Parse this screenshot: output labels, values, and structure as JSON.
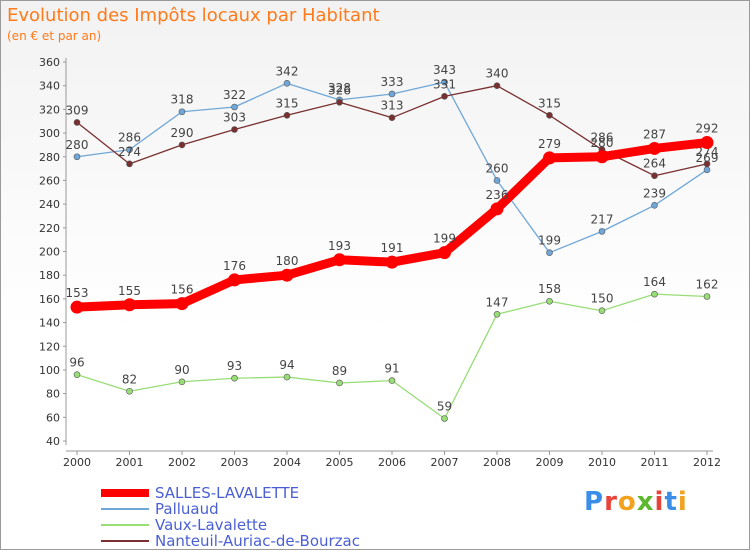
{
  "header": {
    "title": "Evolution des Impôts locaux par Habitant",
    "subtitle": "(en € et par an)"
  },
  "logo": {
    "text": "Proxiti",
    "colors": [
      "#3a8ee8",
      "#e8433a",
      "#f2a21e",
      "#5cb82e",
      "#e8433a",
      "#3a8ee8",
      "#f2a21e"
    ]
  },
  "chart_data": {
    "type": "line",
    "x": [
      "2000",
      "2001",
      "2002",
      "2003",
      "2004",
      "2005",
      "2006",
      "2007",
      "2008",
      "2009",
      "2010",
      "2011",
      "2012"
    ],
    "ylim": [
      40,
      360
    ],
    "yticks": [
      40,
      60,
      80,
      100,
      120,
      140,
      160,
      180,
      200,
      220,
      240,
      260,
      280,
      300,
      320,
      340,
      360
    ],
    "grid": false,
    "legend_position": "bottom-left",
    "series": [
      {
        "name": "SALLES-LAVALETTE",
        "color": "#ff0000",
        "values": [
          153,
          155,
          156,
          176,
          180,
          193,
          191,
          199,
          236,
          279,
          280,
          287,
          292
        ]
      },
      {
        "name": "Palluaud",
        "color": "#6fa7d8",
        "values": [
          280,
          286,
          318,
          322,
          342,
          328,
          333,
          343,
          260,
          199,
          217,
          239,
          269
        ]
      },
      {
        "name": "Vaux-Lavalette",
        "color": "#99dd77",
        "values": [
          96,
          82,
          90,
          93,
          94,
          89,
          91,
          59,
          147,
          158,
          150,
          164,
          162
        ]
      },
      {
        "name": "Nanteuil-Auriac-de-Bourzac",
        "color": "#7a3030",
        "values": [
          309,
          274,
          290,
          303,
          315,
          326,
          313,
          331,
          340,
          315,
          286,
          264,
          274
        ]
      }
    ]
  }
}
